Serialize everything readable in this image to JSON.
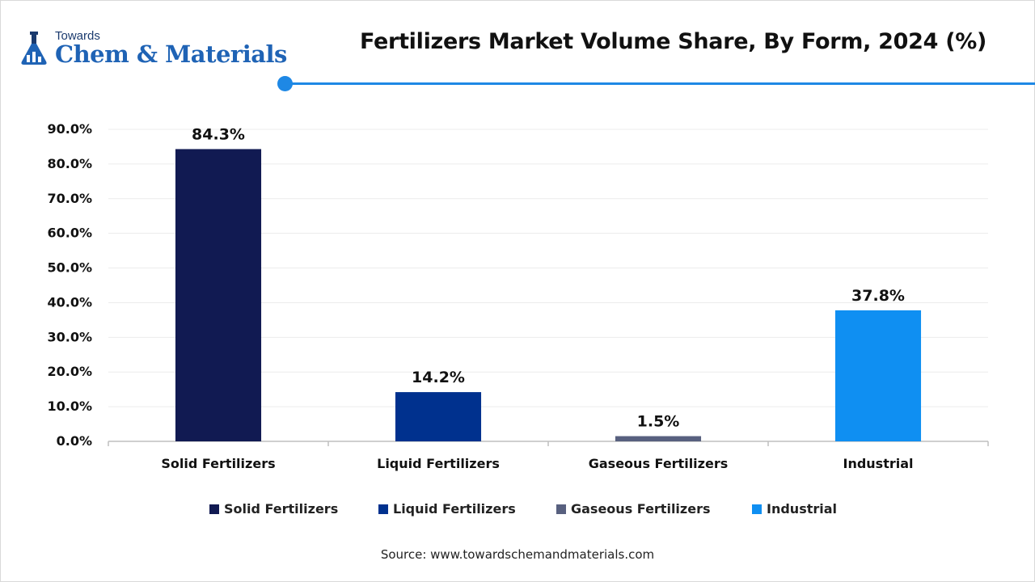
{
  "logo": {
    "top_text": "Towards",
    "main_text": "Chem & Materials"
  },
  "chart_data": {
    "type": "bar",
    "title": "Fertilizers Market Volume Share, By Form, 2024 (%)",
    "categories": [
      "Solid Fertilizers",
      "Liquid Fertilizers",
      "Gaseous Fertilizers",
      "Industrial"
    ],
    "values": [
      84.3,
      14.2,
      1.5,
      37.8
    ],
    "value_labels": [
      "84.3%",
      "14.2%",
      "1.5%",
      "37.8%"
    ],
    "colors": [
      "#111a52",
      "#00318e",
      "#58607f",
      "#0f8ff2"
    ],
    "ylim": [
      0,
      90
    ],
    "yticks": [
      0,
      10,
      20,
      30,
      40,
      50,
      60,
      70,
      80,
      90
    ],
    "ytick_labels": [
      "0.0%",
      "10.0%",
      "20.0%",
      "30.0%",
      "40.0%",
      "50.0%",
      "60.0%",
      "70.0%",
      "80.0%",
      "90.0%"
    ],
    "xlabel": "",
    "ylabel": "",
    "grid": true,
    "legend_position": "bottom"
  },
  "source": "Source: www.towardschemandmaterials.com"
}
